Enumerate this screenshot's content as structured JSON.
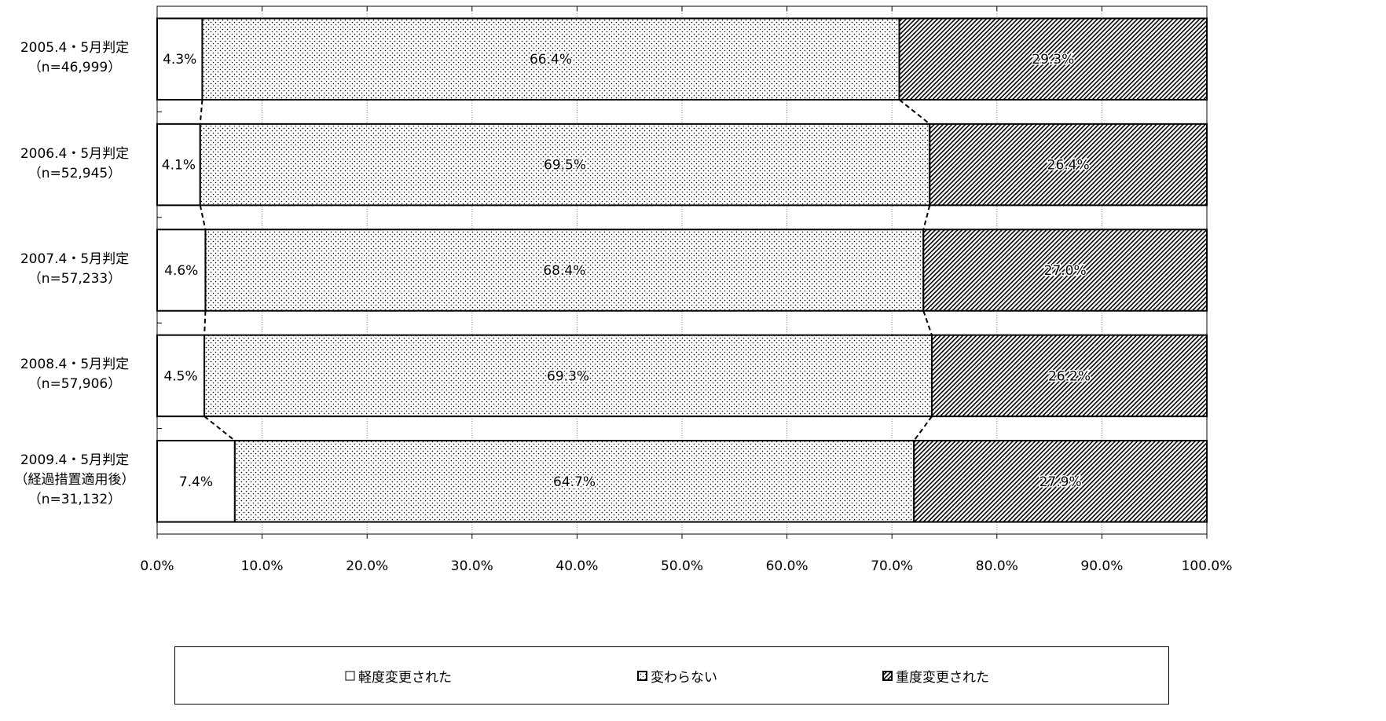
{
  "chart_data": {
    "type": "bar",
    "orientation": "horizontal",
    "stacked": true,
    "categories": [
      [
        "2005.4・5月判定",
        "（n=46,999）"
      ],
      [
        "2006.4・5月判定",
        "（n=52,945）"
      ],
      [
        "2007.4・5月判定",
        "（n=57,233）"
      ],
      [
        "2008.4・5月判定",
        "（n=57,906）"
      ],
      [
        "2009.4・5月判定",
        "（経過措置適用後）",
        "（n=31,132）"
      ]
    ],
    "series": [
      {
        "name": "軽度変更された",
        "pattern": "none",
        "values": [
          4.3,
          4.1,
          4.6,
          4.5,
          7.4
        ],
        "labels": [
          "4.3%",
          "4.1%",
          "4.6%",
          "4.5%",
          "7.4%"
        ]
      },
      {
        "name": "変わらない",
        "pattern": "dots",
        "values": [
          66.4,
          69.5,
          68.4,
          69.3,
          64.7
        ],
        "labels": [
          "66.4%",
          "69.5%",
          "68.4%",
          "69.3%",
          "64.7%"
        ]
      },
      {
        "name": "重度変更された",
        "pattern": "diagonal-hatch",
        "values": [
          29.3,
          26.4,
          27.0,
          26.2,
          27.9
        ],
        "labels": [
          "29.3%",
          "26.4%",
          "27.0%",
          "26.2%",
          "27.9%"
        ]
      }
    ],
    "xaxis": {
      "range": [
        0,
        100
      ],
      "ticks": [
        0,
        10,
        20,
        30,
        40,
        50,
        60,
        70,
        80,
        90,
        100
      ],
      "tick_labels": [
        "0.0%",
        "10.0%",
        "20.0%",
        "30.0%",
        "40.0%",
        "50.0%",
        "60.0%",
        "70.0%",
        "80.0%",
        "90.0%",
        "100.0%"
      ]
    },
    "grid": "vertical-dotted",
    "series_lines": true,
    "legend_position": "bottom",
    "colors": {
      "fill": "#ffffff",
      "stroke": "#000000",
      "grid": "#888888"
    }
  },
  "legend": {
    "items": [
      {
        "icon": "□",
        "label": "軽度変更された"
      },
      {
        "icon": "◘",
        "label": "変わらない"
      },
      {
        "icon": "▨",
        "label": "重度変更された"
      }
    ]
  }
}
